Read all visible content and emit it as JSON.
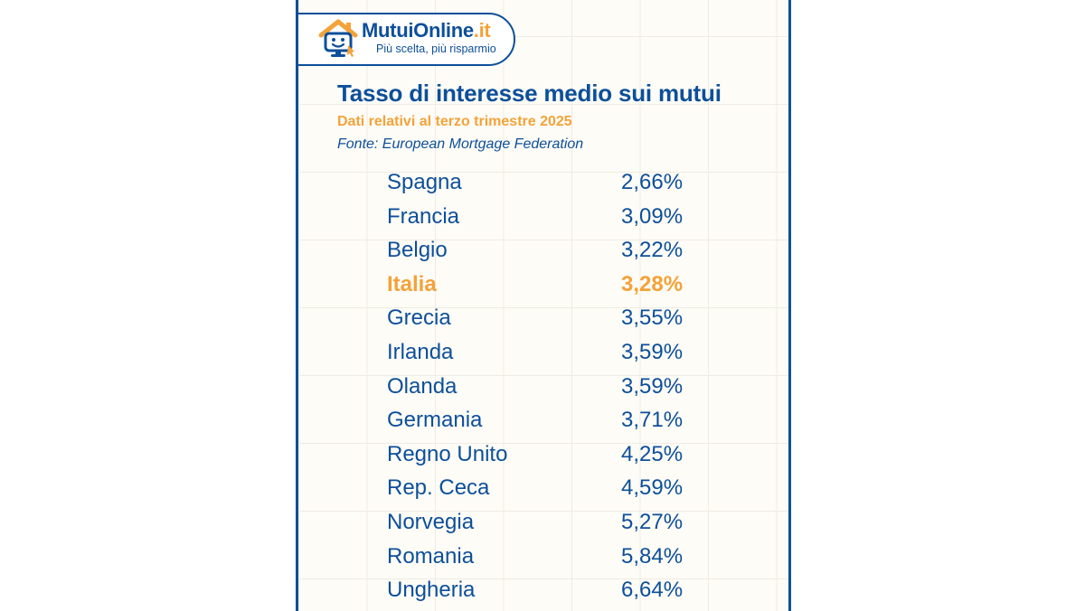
{
  "brand": {
    "name_main": "MutuiOnline",
    "name_accent": ".it",
    "tagline": "Più scelta, più risparmio",
    "colors": {
      "primary": "#0d4f9a",
      "accent": "#f4a23a"
    },
    "icon": "house-smiley-icon"
  },
  "chart_data": {
    "type": "table",
    "title": "Tasso di interesse medio sui mutui",
    "subtitle": "Dati relativi al terzo trimestre 2025",
    "source": "Fonte: European Mortgage Federation",
    "highlight": "Italia",
    "rows": [
      {
        "country": "Spagna",
        "rate": "2,66%",
        "value": 2.66
      },
      {
        "country": "Francia",
        "rate": "3,09%",
        "value": 3.09
      },
      {
        "country": "Belgio",
        "rate": "3,22%",
        "value": 3.22
      },
      {
        "country": "Italia",
        "rate": "3,28%",
        "value": 3.28
      },
      {
        "country": "Grecia",
        "rate": "3,55%",
        "value": 3.55
      },
      {
        "country": "Irlanda",
        "rate": "3,59%",
        "value": 3.59
      },
      {
        "country": "Olanda",
        "rate": "3,59%",
        "value": 3.59
      },
      {
        "country": "Germania",
        "rate": "3,71%",
        "value": 3.71
      },
      {
        "country": "Regno Unito",
        "rate": "4,25%",
        "value": 4.25
      },
      {
        "country": "Rep. Ceca",
        "rate": "4,59%",
        "value": 4.59
      },
      {
        "country": "Norvegia",
        "rate": "5,27%",
        "value": 5.27
      },
      {
        "country": "Romania",
        "rate": "5,84%",
        "value": 5.84
      },
      {
        "country": "Ungheria",
        "rate": "6,64%",
        "value": 6.64
      }
    ]
  }
}
